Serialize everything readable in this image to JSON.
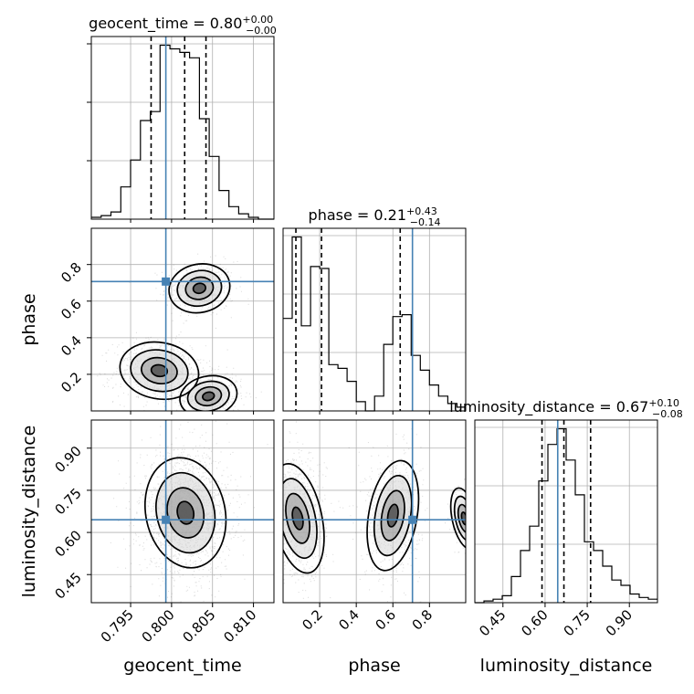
{
  "chart_data": {
    "type": "corner",
    "parameters": [
      "geocent_time",
      "phase",
      "luminosity_distance"
    ],
    "ranges": {
      "geocent_time": [
        0.7902,
        0.8125
      ],
      "phase": [
        0.0,
        0.998
      ],
      "luminosity_distance": [
        0.35,
        1.0
      ]
    },
    "truths": {
      "geocent_time": 0.7993,
      "phase": 0.707,
      "luminosity_distance": 0.645
    },
    "titles": [
      {
        "param": "geocent_time",
        "prefix": "geocent_time = ",
        "value": "0.80",
        "plus": "+0.00",
        "minus": "−0.00"
      },
      {
        "param": "phase",
        "prefix": "phase = ",
        "value": "0.21",
        "plus": "+0.43",
        "minus": "−0.14"
      },
      {
        "param": "luminosity_distance",
        "prefix": "luminosity_distance = ",
        "value": "0.67",
        "plus": "+0.10",
        "minus": "−0.08"
      }
    ],
    "quantiles": {
      "geocent_time": [
        0.7975,
        0.8016,
        0.8042
      ],
      "phase": [
        0.07,
        0.21,
        0.64
      ],
      "luminosity_distance": [
        0.589,
        0.667,
        0.762
      ]
    },
    "histograms": {
      "geocent_time": {
        "edges": [
          0.7902,
          0.7914,
          0.7926,
          0.7938,
          0.795,
          0.7962,
          0.7974,
          0.7986,
          0.7998,
          0.801,
          0.8022,
          0.8034,
          0.8046,
          0.8058,
          0.807,
          0.8082,
          0.8094,
          0.8106,
          0.8118,
          0.813
        ],
        "counts": [
          1,
          2,
          4,
          18,
          33,
          55,
          60,
          97,
          95,
          93,
          90,
          56,
          35,
          16,
          7,
          3,
          1,
          0,
          0
        ]
      },
      "phase": {
        "edges": [
          0.0,
          0.05,
          0.1,
          0.15,
          0.2,
          0.25,
          0.3,
          0.35,
          0.4,
          0.45,
          0.5,
          0.55,
          0.6,
          0.65,
          0.7,
          0.75,
          0.8,
          0.85,
          0.9,
          0.95,
          1.0
        ],
        "counts": [
          50,
          94,
          46,
          78,
          77,
          25,
          23,
          16,
          5,
          0,
          8,
          36,
          51,
          52,
          30,
          22,
          14,
          8,
          4,
          2
        ]
      },
      "luminosity_distance": {
        "edges": [
          0.35,
          0.3825,
          0.415,
          0.4475,
          0.48,
          0.5125,
          0.545,
          0.5775,
          0.61,
          0.6425,
          0.675,
          0.7075,
          0.74,
          0.7725,
          0.805,
          0.8375,
          0.87,
          0.9025,
          0.935,
          0.9675,
          1.0
        ],
        "counts": [
          0,
          1,
          2,
          4,
          15,
          30,
          44,
          70,
          91,
          100,
          82,
          62,
          35,
          30,
          21,
          13,
          10,
          5,
          3,
          2
        ]
      }
    },
    "posterior_modes": [
      {
        "x": "geocent_time",
        "y": "phase",
        "modes": [
          {
            "cx": 0.8034,
            "cy": 0.67,
            "sx": 0.0017,
            "sy": 0.06,
            "w": 1
          },
          {
            "cx": 0.7985,
            "cy": 0.22,
            "sx": 0.0022,
            "sy": 0.07,
            "w": 1.6
          },
          {
            "cx": 0.8045,
            "cy": 0.08,
            "sx": 0.0016,
            "sy": 0.05,
            "w": 1.2
          }
        ]
      },
      {
        "x": "geocent_time",
        "y": "luminosity_distance",
        "modes": [
          {
            "cx": 0.8017,
            "cy": 0.67,
            "sx": 0.0022,
            "sy": 0.09,
            "w": 1
          }
        ]
      },
      {
        "x": "phase",
        "y": "luminosity_distance",
        "modes": [
          {
            "cx": 0.08,
            "cy": 0.65,
            "sx": 0.06,
            "sy": 0.09,
            "w": 1.2
          },
          {
            "cx": 0.6,
            "cy": 0.66,
            "sx": 0.06,
            "sy": 0.09,
            "w": 1
          },
          {
            "cx": 0.99,
            "cy": 0.65,
            "sx": 0.03,
            "sy": 0.05,
            "w": 0.2
          }
        ]
      }
    ],
    "ticks": {
      "geocent_time": [
        "0.795",
        "0.800",
        "0.805",
        "0.810"
      ],
      "phase": [
        "0.2",
        "0.4",
        "0.6",
        "0.8"
      ],
      "luminosity_distance": [
        "0.45",
        "0.60",
        "0.75",
        "0.90"
      ]
    },
    "axis_labels": {
      "geocent_time": "geocent_time",
      "phase": "phase",
      "luminosity_distance": "luminosity_distance"
    },
    "grid": true,
    "colors": {
      "truth": "#4682b4",
      "hist": "#000000",
      "quantile": "#000000",
      "grid": "#b0b0b0",
      "scatter": "#000000"
    }
  }
}
